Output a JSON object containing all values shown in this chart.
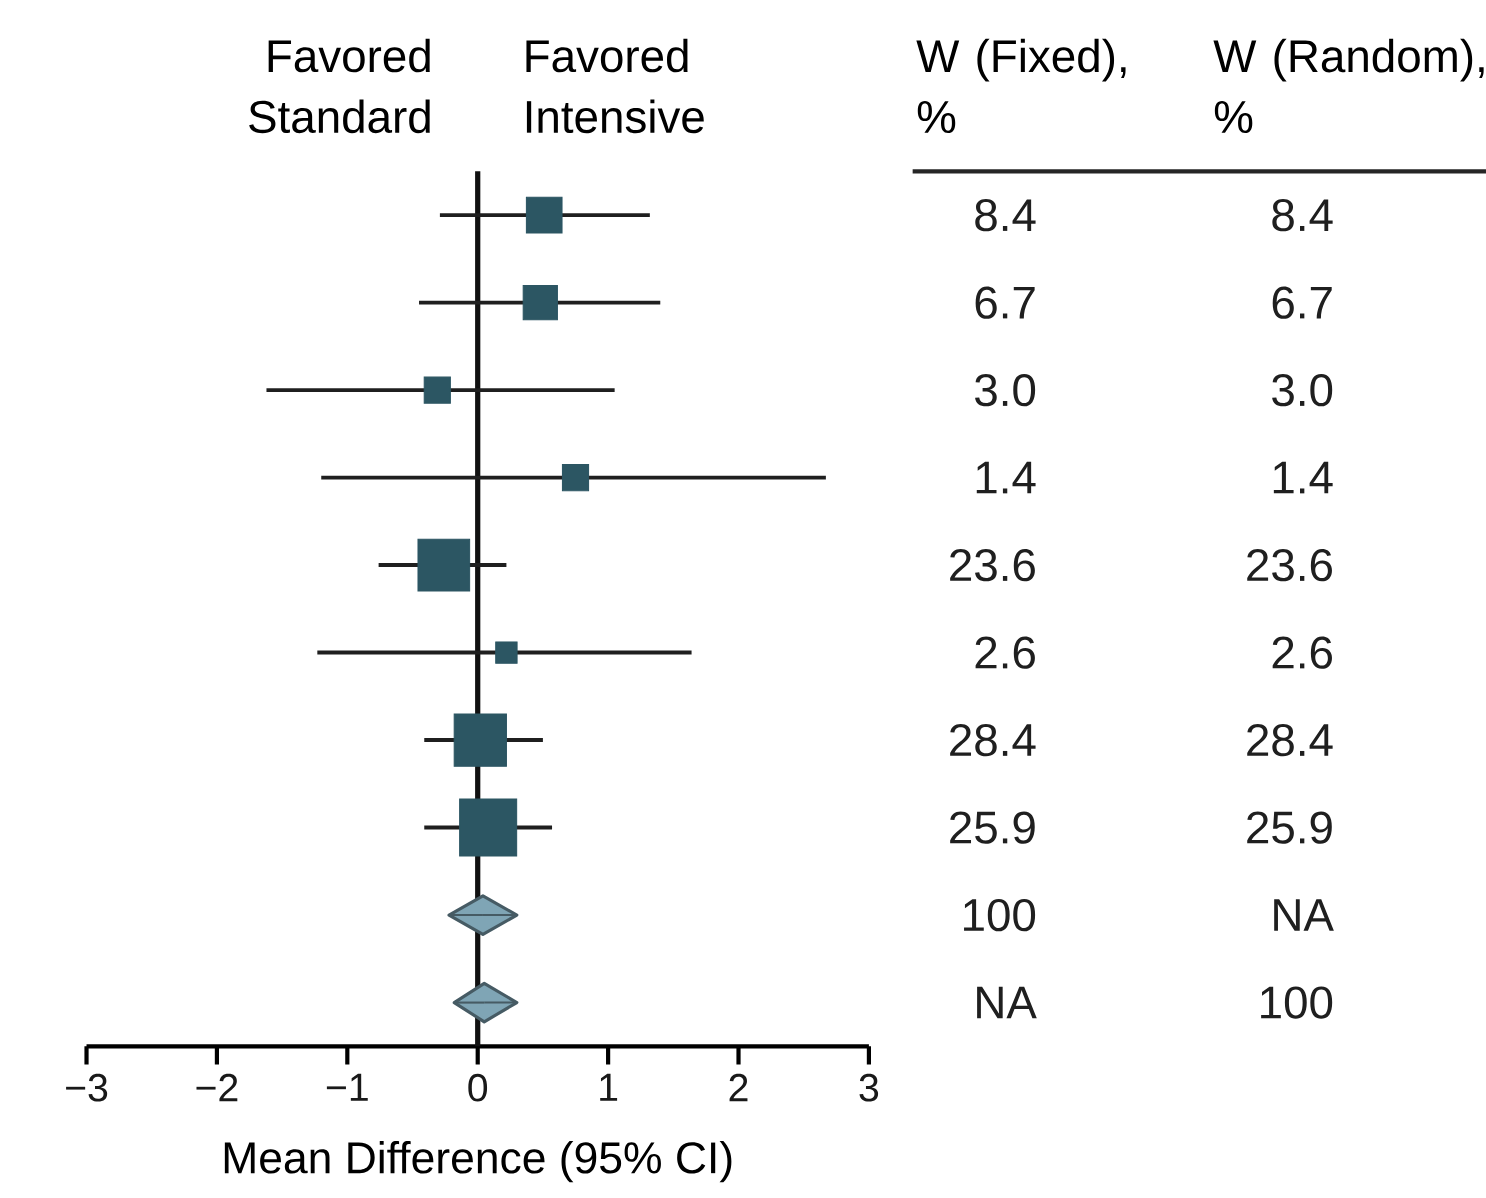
{
  "chart_data": [
    {
      "type": "scatter",
      "orientation": "horizontal",
      "categories": [
        null,
        null,
        null,
        null,
        null,
        null,
        null,
        null,
        null,
        null
      ],
      "xlabel": "Mean Difference (95% CI)",
      "annotations": [
        "Favored Standard",
        "Favored Intensive"
      ],
      "xlim": [
        -3,
        3
      ],
      "xticks": [
        {
          "value": -3,
          "label": "−3"
        },
        {
          "value": -2,
          "label": "−2"
        },
        {
          "value": -1,
          "label": "−1"
        },
        0,
        1,
        2,
        3
      ],
      "ref_lines": [
        {
          "axis": "x",
          "value": 0,
          "color": "#111111",
          "line_style": "solid"
        }
      ],
      "series": [
        {
          "marker": "square",
          "color": "#2c5663",
          "values": [
            0.51,
            0.48,
            -0.31,
            0.75,
            -0.26,
            0.22,
            0.02,
            0.08,
            null,
            null
          ],
          "errors": [
            [
              -0.29,
              1.32
            ],
            [
              -0.45,
              1.4
            ],
            [
              -1.62,
              1.05
            ],
            [
              -1.2,
              2.67
            ],
            [
              -0.76,
              0.22
            ],
            [
              -1.23,
              1.64
            ],
            [
              -0.41,
              0.5
            ],
            [
              -0.41,
              0.57
            ],
            null,
            null
          ],
          "sizes": [
            0.39,
            0.36,
            0.21,
            0.21,
            0.82,
            0.14,
            0.84,
            1,
            null,
            null
          ]
        },
        {
          "marker": "diamond",
          "color": "#7fa5b5",
          "values": [
            null,
            null,
            null,
            null,
            null,
            null,
            null,
            null,
            0.04,
            0.05
          ],
          "errors": [
            null,
            null,
            null,
            null,
            null,
            null,
            null,
            null,
            [
              -0.22,
              0.3
            ],
            [
              -0.18,
              0.3
            ]
          ]
        }
      ]
    },
    {
      "type": "other",
      "categories": [
        "W (Fixed), %",
        "W (Random), %"
      ],
      "annotations": [
        "8.4",
        "8.4",
        "6.7",
        "6.7",
        "3.0",
        "3.0",
        "1.4",
        "1.4",
        "23.6",
        "23.6",
        "2.6",
        "2.6",
        "28.4",
        "28.4",
        "25.9",
        "25.9",
        "100",
        "NA",
        "NA",
        "100"
      ]
    }
  ]
}
